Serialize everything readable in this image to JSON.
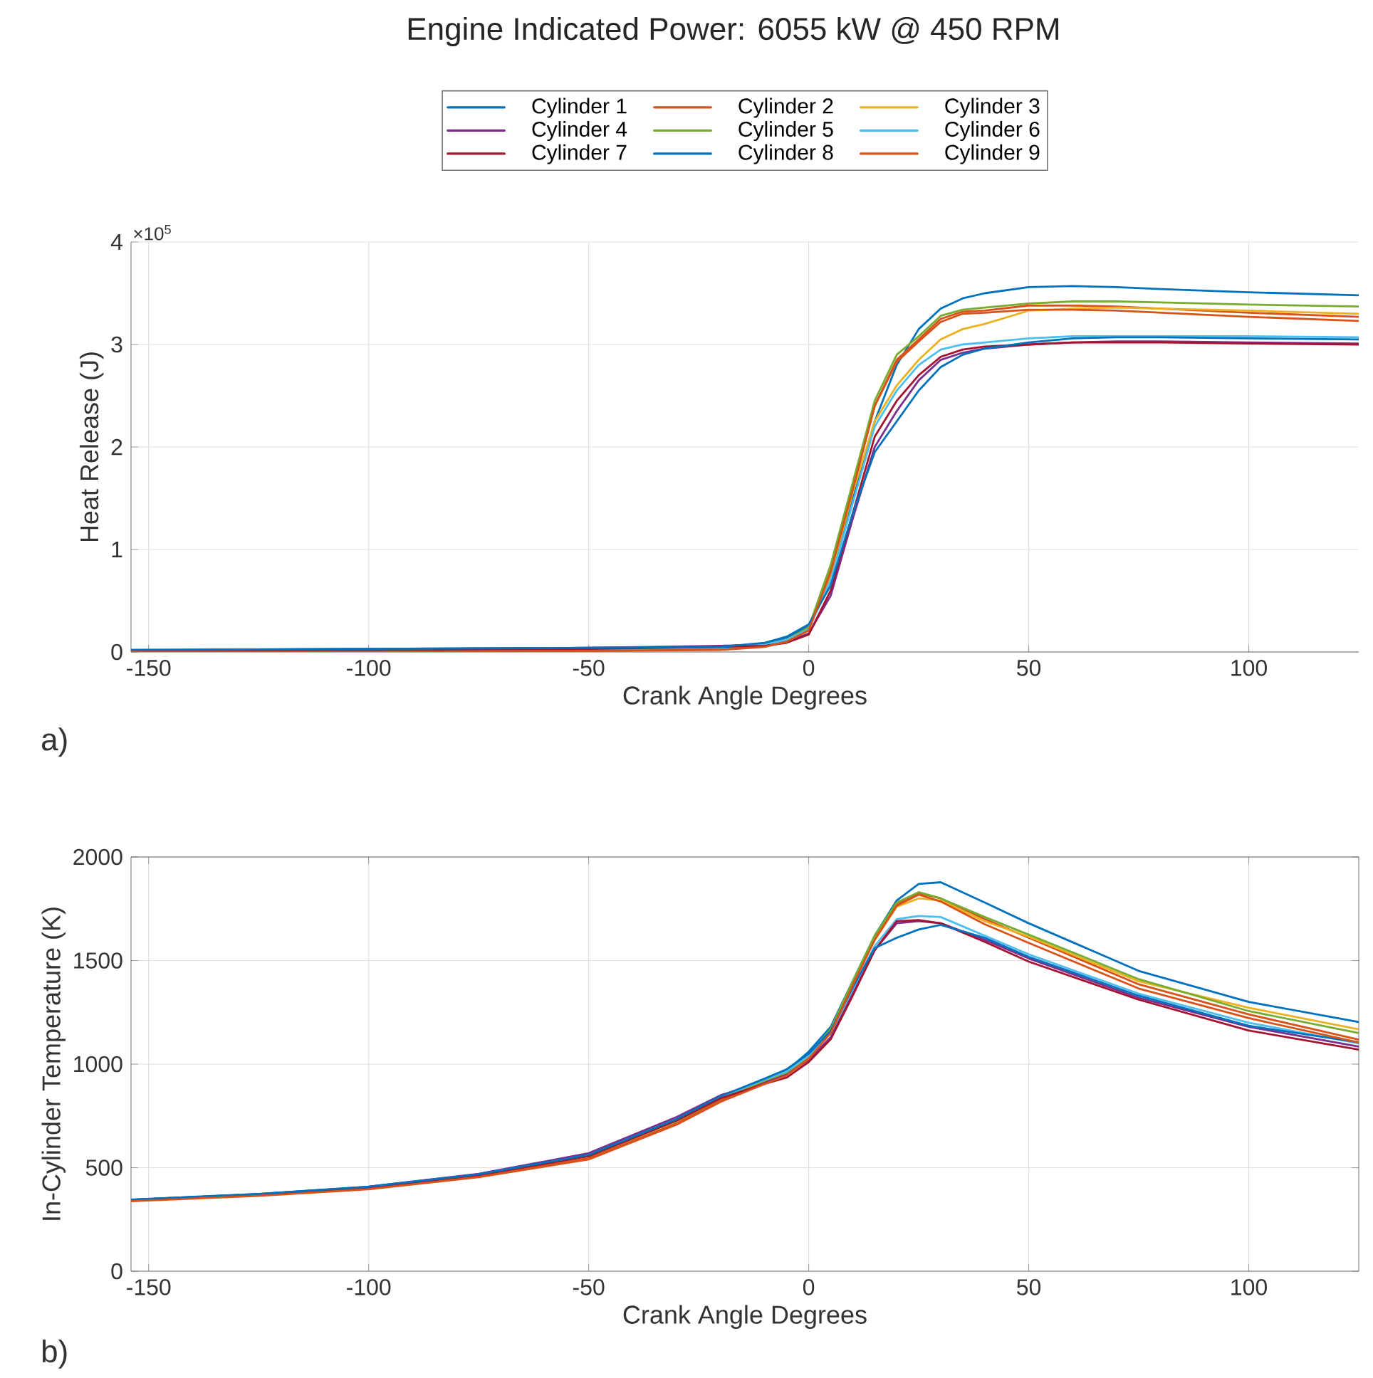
{
  "chart_data": [
    {
      "type": "line",
      "title": "Engine Indicated Power: 6055 kW @ 450 RPM",
      "xlabel": "Crank Angle Degrees",
      "ylabel": "Heat Release (J)",
      "annotations": [
        "×10$^{5}$",
        "a)"
      ],
      "legend": "top",
      "grid": true,
      "xlim": [
        -154,
        125
      ],
      "xticks": [
        -150,
        -100,
        -50,
        0,
        50,
        100
      ],
      "ylim": [
        0,
        4
      ],
      "yticks": [
        0,
        1,
        2,
        3,
        4
      ],
      "x": [
        -154,
        -100,
        -50,
        -20,
        -10,
        -5,
        0,
        5,
        10,
        15,
        20,
        25,
        30,
        35,
        40,
        50,
        60,
        70,
        80,
        100,
        125
      ],
      "series": [
        {
          "name": "Cylinder 1",
          "color": "#0072bd",
          "values": [
            0.02,
            0.03,
            0.04,
            0.05,
            0.08,
            0.14,
            0.25,
            0.7,
            1.5,
            2.25,
            2.8,
            3.15,
            3.35,
            3.45,
            3.5,
            3.56,
            3.57,
            3.56,
            3.54,
            3.51,
            3.48
          ]
        },
        {
          "name": "Cylinder 2",
          "color": "#d95319",
          "values": [
            0.01,
            0.01,
            0.02,
            0.03,
            0.06,
            0.11,
            0.22,
            0.8,
            1.6,
            2.4,
            2.85,
            3.05,
            3.25,
            3.32,
            3.33,
            3.38,
            3.38,
            3.37,
            3.35,
            3.31,
            3.27
          ]
        },
        {
          "name": "Cylinder 3",
          "color": "#edb120",
          "values": [
            null,
            null,
            null,
            null,
            null,
            null,
            0.22,
            0.75,
            1.55,
            2.25,
            2.6,
            2.85,
            3.05,
            3.15,
            3.2,
            3.33,
            3.35,
            3.36,
            3.35,
            3.33,
            3.3
          ]
        },
        {
          "name": "Cylinder 4",
          "color": "#7e2f8e",
          "values": [
            0.01,
            0.02,
            0.04,
            0.06,
            0.07,
            0.1,
            0.18,
            0.55,
            1.3,
            2.0,
            2.35,
            2.65,
            2.85,
            2.92,
            2.96,
            3.0,
            3.02,
            3.03,
            3.03,
            3.02,
            3.01
          ]
        },
        {
          "name": "Cylinder 5",
          "color": "#77ac30",
          "values": [
            null,
            null,
            null,
            null,
            0.07,
            0.12,
            0.24,
            0.85,
            1.65,
            2.45,
            2.9,
            3.08,
            3.28,
            3.34,
            3.36,
            3.4,
            3.42,
            3.42,
            3.41,
            3.39,
            3.37
          ]
        },
        {
          "name": "Cylinder 6",
          "color": "#4dbeee",
          "values": [
            0.01,
            0.02,
            0.03,
            0.04,
            0.07,
            0.12,
            0.22,
            0.7,
            1.45,
            2.2,
            2.55,
            2.8,
            2.95,
            3.0,
            3.02,
            3.06,
            3.08,
            3.08,
            3.08,
            3.08,
            3.07
          ]
        },
        {
          "name": "Cylinder 7",
          "color": "#a2142f",
          "values": [
            0.01,
            0.02,
            0.03,
            0.05,
            0.06,
            0.09,
            0.17,
            0.6,
            1.35,
            2.1,
            2.45,
            2.7,
            2.88,
            2.95,
            2.98,
            3.0,
            3.02,
            3.02,
            3.02,
            3.01,
            3.0
          ]
        },
        {
          "name": "Cylinder 8",
          "color": "#0072bd",
          "values": [
            0.02,
            0.03,
            0.04,
            0.05,
            0.09,
            0.15,
            0.27,
            0.65,
            1.35,
            1.95,
            2.25,
            2.55,
            2.78,
            2.9,
            2.96,
            3.02,
            3.06,
            3.07,
            3.07,
            3.06,
            3.05
          ]
        },
        {
          "name": "Cylinder 9",
          "color": "#d95319",
          "values": [
            0.0,
            0.0,
            0.01,
            0.02,
            0.05,
            0.1,
            0.21,
            0.78,
            1.58,
            2.4,
            2.83,
            3.03,
            3.22,
            3.3,
            3.31,
            3.34,
            3.34,
            3.33,
            3.31,
            3.27,
            3.23
          ]
        }
      ]
    },
    {
      "type": "line",
      "xlabel": "Crank Angle Degrees",
      "ylabel": "In-Cylinder Temperature (K)",
      "annotations": [
        "b)"
      ],
      "grid": true,
      "xlim": [
        -154,
        125
      ],
      "xticks": [
        -150,
        -100,
        -50,
        0,
        50,
        100
      ],
      "ylim": [
        0,
        2000
      ],
      "yticks": [
        0,
        500,
        1000,
        1500,
        2000
      ],
      "x": [
        -154,
        -125,
        -100,
        -75,
        -50,
        -30,
        -20,
        -10,
        -5,
        0,
        5,
        10,
        15,
        20,
        25,
        30,
        40,
        50,
        75,
        100,
        125
      ],
      "series": [
        {
          "color": "#0072bd",
          "values": [
            345,
            372,
            407,
            468,
            560,
            730,
            840,
            925,
            968,
            1060,
            1180,
            1400,
            1620,
            1790,
            1870,
            1878,
            1780,
            1680,
            1450,
            1300,
            1203
          ]
        },
        {
          "color": "#d95319",
          "values": [
            343,
            368,
            400,
            460,
            545,
            715,
            825,
            910,
            950,
            1030,
            1160,
            1390,
            1610,
            1770,
            1825,
            1800,
            1700,
            1610,
            1385,
            1240,
            1118
          ]
        },
        {
          "color": "#edb120",
          "values": [
            null,
            null,
            null,
            null,
            null,
            null,
            null,
            null,
            null,
            null,
            null,
            1390,
            1600,
            1760,
            1800,
            1790,
            1690,
            1615,
            1400,
            1272,
            1168
          ]
        },
        {
          "color": "#7e2f8e",
          "values": [
            345,
            372,
            408,
            470,
            570,
            745,
            850,
            915,
            950,
            1020,
            1130,
            1340,
            1550,
            1680,
            1690,
            1680,
            1600,
            1510,
            1320,
            1180,
            1085
          ]
        },
        {
          "color": "#77ac30",
          "values": [
            null,
            null,
            null,
            null,
            555,
            725,
            835,
            920,
            960,
            1040,
            1170,
            1400,
            1620,
            1780,
            1830,
            1800,
            1710,
            1625,
            1410,
            1256,
            1150
          ]
        },
        {
          "color": "#4dbeee",
          "values": [
            345,
            371,
            406,
            467,
            560,
            730,
            842,
            925,
            965,
            1040,
            1150,
            1360,
            1570,
            1700,
            1715,
            1710,
            1620,
            1530,
            1340,
            1200,
            1100
          ]
        },
        {
          "color": "#a2142f",
          "values": [
            344,
            370,
            404,
            464,
            555,
            728,
            835,
            905,
            935,
            1010,
            1120,
            1330,
            1550,
            1690,
            1695,
            1680,
            1590,
            1495,
            1311,
            1162,
            1070
          ]
        },
        {
          "color": "#0072bd",
          "values": [
            346,
            373,
            408,
            468,
            562,
            735,
            845,
            930,
            975,
            1050,
            1160,
            1370,
            1560,
            1610,
            1650,
            1672,
            1610,
            1518,
            1330,
            1185,
            1105
          ]
        },
        {
          "color": "#d95319",
          "values": [
            338,
            364,
            396,
            454,
            540,
            708,
            818,
            904,
            945,
            1025,
            1150,
            1380,
            1600,
            1765,
            1818,
            1785,
            1675,
            1585,
            1365,
            1222,
            1104
          ]
        }
      ]
    }
  ]
}
